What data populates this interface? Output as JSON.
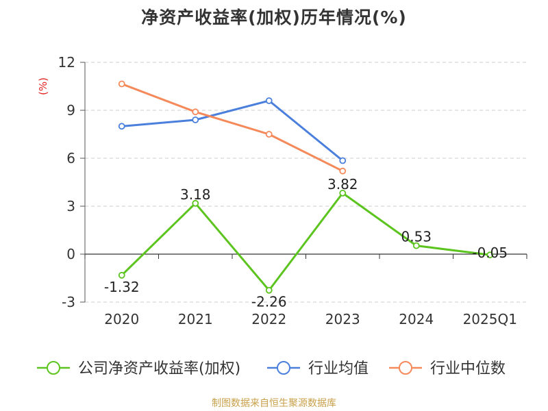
{
  "title": "净资产收益率(加权)历年情况(%)",
  "source_note": "制图数据来自恒生聚源数据库",
  "chart_data": {
    "type": "line",
    "title": "净资产收益率(加权)历年情况(%)",
    "xlabel": "",
    "ylabel": "(%)",
    "categories": [
      "2020",
      "2021",
      "2022",
      "2023",
      "2024",
      "2025Q1"
    ],
    "ylim": [
      -3,
      12
    ],
    "yticks": [
      -3,
      0,
      3,
      6,
      9,
      12
    ],
    "grid": true,
    "legend_position": "bottom",
    "series": [
      {
        "name": "公司净资产收益率(加权)",
        "color": "#5cc41e",
        "values": [
          -1.32,
          3.18,
          -2.26,
          3.82,
          0.53,
          -0.05
        ],
        "labels": [
          "-1.32",
          "3.18",
          "-2.26",
          "3.82",
          "0.53",
          "-0.05"
        ],
        "show_labels": true
      },
      {
        "name": "行业均值",
        "color": "#4a7fdc",
        "values": [
          8.0,
          8.4,
          9.6,
          5.85,
          null,
          null
        ],
        "show_labels": false
      },
      {
        "name": "行业中位数",
        "color": "#f5895a",
        "values": [
          10.65,
          8.9,
          7.5,
          5.2,
          null,
          null
        ],
        "show_labels": false
      }
    ]
  }
}
